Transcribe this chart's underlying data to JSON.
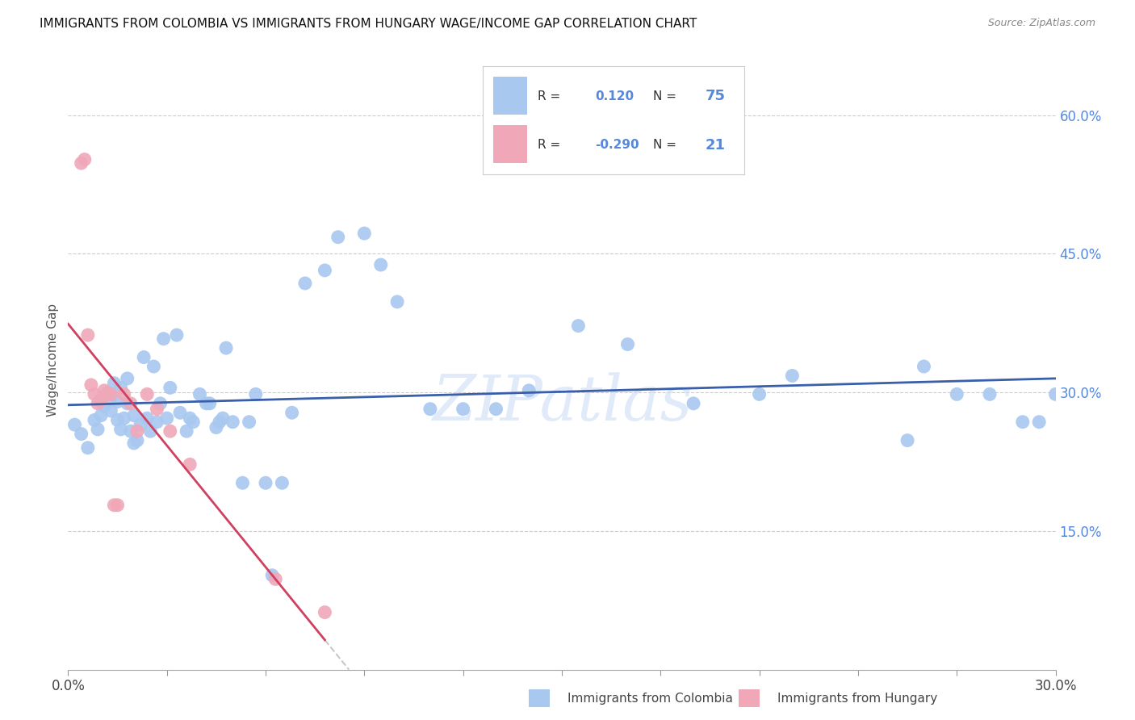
{
  "title": "IMMIGRANTS FROM COLOMBIA VS IMMIGRANTS FROM HUNGARY WAGE/INCOME GAP CORRELATION CHART",
  "source": "Source: ZipAtlas.com",
  "ylabel": "Wage/Income Gap",
  "ytick_vals": [
    0.15,
    0.3,
    0.45,
    0.6
  ],
  "xlim": [
    0.0,
    0.3
  ],
  "ylim": [
    0.0,
    0.67
  ],
  "r_colombia": 0.12,
  "n_colombia": 75,
  "r_hungary": -0.29,
  "n_hungary": 21,
  "color_colombia": "#a8c8f0",
  "color_hungary": "#f0a8b8",
  "color_trend_colombia": "#3a5faa",
  "color_trend_hungary": "#d04060",
  "color_trend_hungary_ext": "#c8c8c8",
  "watermark": "ZIPatlas",
  "colombia_x": [
    0.002,
    0.004,
    0.006,
    0.008,
    0.009,
    0.01,
    0.01,
    0.011,
    0.012,
    0.013,
    0.013,
    0.014,
    0.015,
    0.015,
    0.016,
    0.016,
    0.017,
    0.018,
    0.018,
    0.019,
    0.02,
    0.02,
    0.021,
    0.022,
    0.023,
    0.024,
    0.025,
    0.026,
    0.027,
    0.028,
    0.029,
    0.03,
    0.031,
    0.033,
    0.034,
    0.036,
    0.037,
    0.038,
    0.04,
    0.042,
    0.043,
    0.045,
    0.046,
    0.047,
    0.048,
    0.05,
    0.053,
    0.055,
    0.057,
    0.06,
    0.062,
    0.065,
    0.068,
    0.072,
    0.078,
    0.082,
    0.09,
    0.095,
    0.1,
    0.11,
    0.12,
    0.13,
    0.14,
    0.155,
    0.17,
    0.19,
    0.21,
    0.22,
    0.255,
    0.26,
    0.27,
    0.28,
    0.29,
    0.295,
    0.3
  ],
  "colombia_y": [
    0.265,
    0.255,
    0.24,
    0.27,
    0.26,
    0.29,
    0.275,
    0.285,
    0.3,
    0.295,
    0.28,
    0.31,
    0.29,
    0.27,
    0.305,
    0.26,
    0.272,
    0.288,
    0.315,
    0.258,
    0.245,
    0.275,
    0.248,
    0.265,
    0.338,
    0.272,
    0.258,
    0.328,
    0.268,
    0.288,
    0.358,
    0.272,
    0.305,
    0.362,
    0.278,
    0.258,
    0.272,
    0.268,
    0.298,
    0.288,
    0.288,
    0.262,
    0.268,
    0.272,
    0.348,
    0.268,
    0.202,
    0.268,
    0.298,
    0.202,
    0.102,
    0.202,
    0.278,
    0.418,
    0.432,
    0.468,
    0.472,
    0.438,
    0.398,
    0.282,
    0.282,
    0.282,
    0.302,
    0.372,
    0.352,
    0.288,
    0.298,
    0.318,
    0.248,
    0.328,
    0.298,
    0.298,
    0.268,
    0.268,
    0.298
  ],
  "hungary_x": [
    0.004,
    0.005,
    0.006,
    0.007,
    0.008,
    0.009,
    0.01,
    0.011,
    0.012,
    0.013,
    0.014,
    0.015,
    0.017,
    0.019,
    0.021,
    0.024,
    0.027,
    0.031,
    0.037,
    0.063,
    0.078
  ],
  "hungary_y": [
    0.548,
    0.552,
    0.362,
    0.308,
    0.298,
    0.288,
    0.292,
    0.302,
    0.298,
    0.298,
    0.178,
    0.178,
    0.298,
    0.288,
    0.258,
    0.298,
    0.282,
    0.258,
    0.222,
    0.098,
    0.062
  ]
}
